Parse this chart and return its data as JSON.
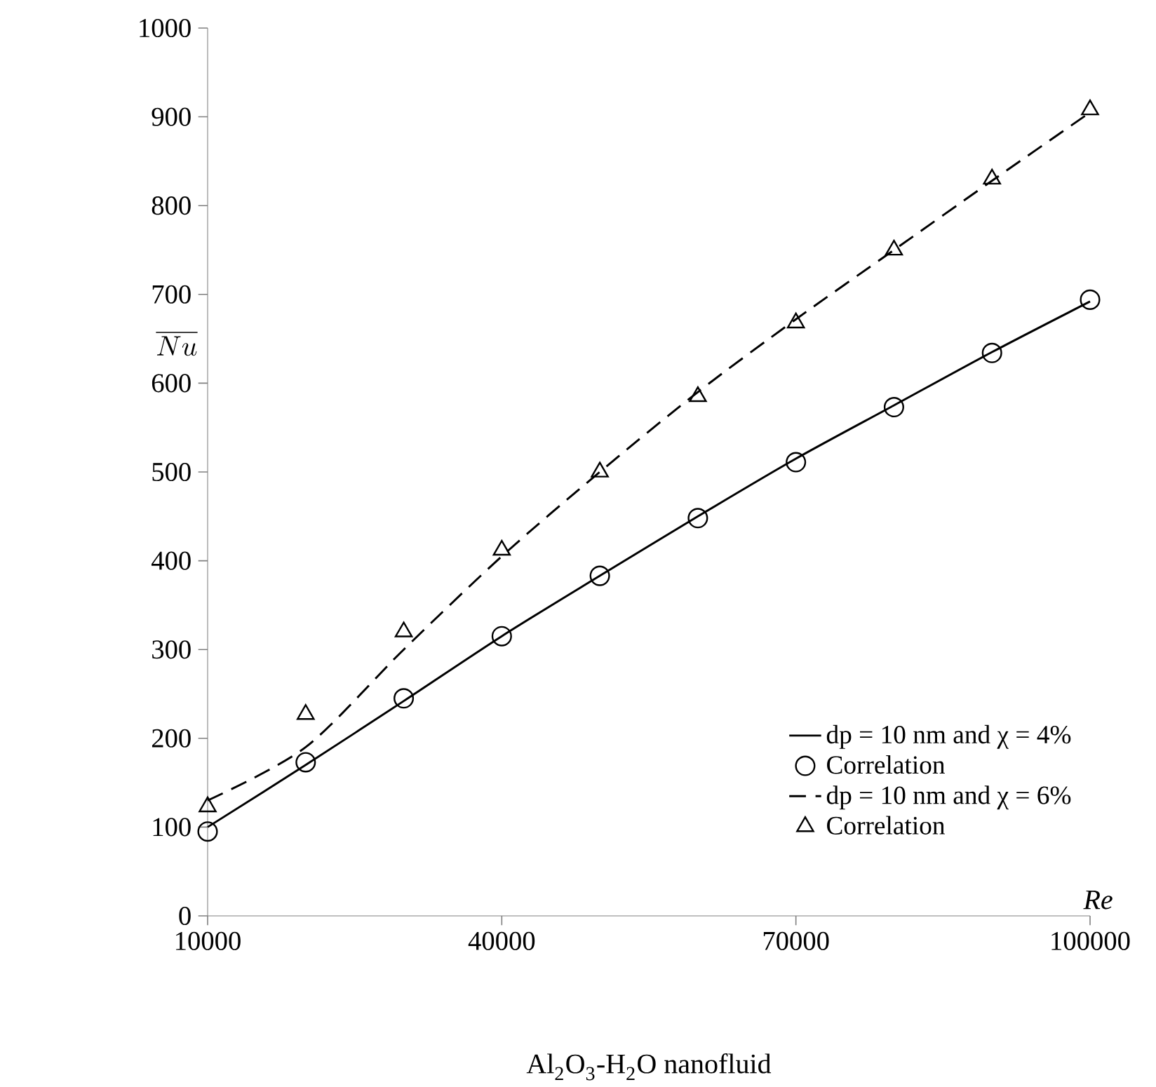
{
  "chart_data": {
    "type": "line",
    "xlabel": "Re",
    "ylabel": "\\overline{Nu}",
    "annotations": [
      "Al$_{2}$O$_{3}$-H$_{2}$O nanofluid"
    ],
    "x": [
      10000,
      20000,
      30000,
      40000,
      50000,
      60000,
      70000,
      80000,
      90000,
      100000
    ],
    "series": [
      {
        "name": "dp = 10 nm and χ = 4%",
        "line_style": "solid",
        "marker": "none",
        "color": "#000000",
        "values": [
          100,
          170,
          242,
          315,
          383,
          450,
          515,
          575,
          635,
          692
        ]
      },
      {
        "name": "Correlation",
        "type": "scatter",
        "marker": "circle",
        "color": "#000000",
        "values": [
          95,
          173,
          245,
          315,
          383,
          448,
          511,
          573,
          634,
          694
        ]
      },
      {
        "name": "dp = 10 nm and χ = 6%",
        "line_style": "dashed",
        "marker": "none",
        "color": "#000000",
        "values": [
          130,
          190,
          300,
          405,
          500,
          590,
          672,
          750,
          828,
          905
        ]
      },
      {
        "name": "Correlation",
        "type": "scatter",
        "marker": "triangle",
        "color": "#000000",
        "values": [
          123,
          227,
          320,
          412,
          500,
          585,
          668,
          750,
          830,
          908
        ]
      }
    ],
    "xlim": [
      10000,
      100000
    ],
    "xticks": [
      10000,
      40000,
      70000,
      100000
    ],
    "ylim": [
      0,
      1000
    ],
    "yticks": [
      0,
      100,
      200,
      300,
      400,
      500,
      600,
      700,
      800,
      900,
      1000
    ],
    "grid": false,
    "legend": "bottom right"
  }
}
